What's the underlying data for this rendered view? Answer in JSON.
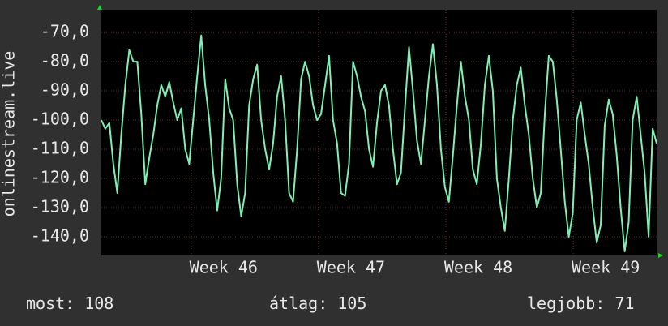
{
  "chart_data": {
    "type": "line",
    "y_label": "onlinestream.live",
    "xlim": [
      45.04,
      49.4
    ],
    "xticks": [
      {
        "value": 46,
        "label": "Week 46"
      },
      {
        "value": 47,
        "label": "Week 47"
      },
      {
        "value": 48,
        "label": "Week 48"
      },
      {
        "value": 49,
        "label": "Week 49"
      }
    ],
    "ylim": [
      -146.4,
      -62.2
    ],
    "yticks": [
      {
        "value": -70,
        "label": "-70,0"
      },
      {
        "value": -80,
        "label": "-80,0"
      },
      {
        "value": -90,
        "label": "-90,0"
      },
      {
        "value": -100,
        "label": "-100,0"
      },
      {
        "value": -110,
        "label": "-110,0"
      },
      {
        "value": -120,
        "label": "-120,0"
      },
      {
        "value": -130,
        "label": "-130,0"
      },
      {
        "value": -140,
        "label": "-140,0"
      }
    ],
    "grid": true,
    "series": [
      {
        "color": "#80efb6",
        "values": [
          -100,
          -103,
          -101,
          -115,
          -125,
          -105,
          -88,
          -76,
          -80,
          -80,
          -98,
          -122,
          -113,
          -105,
          -95,
          -88,
          -92,
          -87,
          -94,
          -100,
          -96,
          -110,
          -115,
          -100,
          -85,
          -71,
          -88,
          -100,
          -118,
          -131,
          -120,
          -86,
          -96,
          -100,
          -122,
          -133,
          -125,
          -95,
          -86,
          -81,
          -100,
          -110,
          -117,
          -108,
          -92,
          -85,
          -100,
          -125,
          -128,
          -110,
          -86,
          -80,
          -85,
          -95,
          -100,
          -98,
          -88,
          -78,
          -100,
          -108,
          -125,
          -126,
          -115,
          -80,
          -85,
          -92,
          -97,
          -110,
          -116,
          -101,
          -90,
          -88,
          -95,
          -110,
          -122,
          -118,
          -96,
          -75,
          -90,
          -107,
          -115,
          -100,
          -85,
          -74,
          -88,
          -110,
          -123,
          -128,
          -112,
          -95,
          -80,
          -92,
          -100,
          -117,
          -122,
          -108,
          -88,
          -78,
          -90,
          -120,
          -130,
          -138,
          -120,
          -100,
          -88,
          -82,
          -95,
          -105,
          -120,
          -130,
          -125,
          -98,
          -78,
          -80,
          -93,
          -110,
          -128,
          -140,
          -132,
          -100,
          -94,
          -105,
          -115,
          -130,
          -142,
          -136,
          -102,
          -93,
          -98,
          -112,
          -130,
          -145,
          -135,
          -100,
          -92,
          -105,
          -118,
          -140,
          -103,
          -108
        ]
      }
    ],
    "stats": [
      {
        "label": "most:",
        "value": 108
      },
      {
        "label": "átlag:",
        "value": 105
      },
      {
        "label": "legjobb:",
        "value": 71
      }
    ]
  }
}
